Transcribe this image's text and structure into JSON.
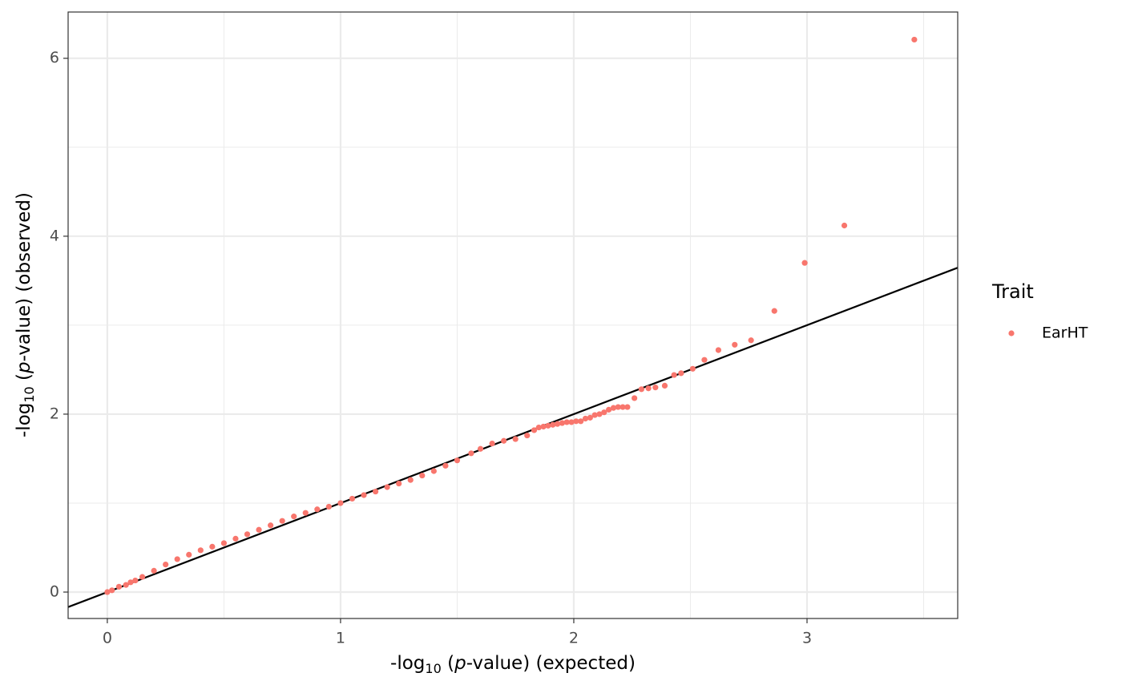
{
  "chart_data": {
    "type": "scatter",
    "xlabel": [
      "-log",
      "10",
      " (",
      "p",
      "-value) (expected)"
    ],
    "ylabel": [
      "-log",
      "10",
      " (",
      "p",
      "-value) (observed)"
    ],
    "legend_title": "Trait",
    "legend_position": "right",
    "grid": true,
    "xlim": [
      -0.168,
      3.646
    ],
    "ylim": [
      -0.297,
      6.52
    ],
    "xticks": [
      0,
      1,
      2,
      3
    ],
    "yticks": [
      0,
      2,
      4,
      6
    ],
    "reference_line": {
      "intercept": 0,
      "slope": 1,
      "color": "#000000"
    },
    "series": [
      {
        "name": "EarHT",
        "color": "#F8766D",
        "x": [
          0.0,
          0.02,
          0.05,
          0.08,
          0.1,
          0.12,
          0.15,
          0.2,
          0.25,
          0.3,
          0.35,
          0.4,
          0.45,
          0.5,
          0.55,
          0.6,
          0.65,
          0.7,
          0.75,
          0.8,
          0.85,
          0.9,
          0.95,
          1.0,
          1.05,
          1.1,
          1.15,
          1.2,
          1.25,
          1.3,
          1.35,
          1.4,
          1.45,
          1.5,
          1.56,
          1.6,
          1.65,
          1.7,
          1.75,
          1.8,
          1.83,
          1.85,
          1.87,
          1.89,
          1.91,
          1.93,
          1.95,
          1.97,
          1.99,
          2.01,
          2.03,
          2.05,
          2.07,
          2.09,
          2.11,
          2.13,
          2.15,
          2.17,
          2.19,
          2.21,
          2.23,
          2.26,
          2.29,
          2.32,
          2.35,
          2.39,
          2.43,
          2.46,
          2.51,
          2.56,
          2.62,
          2.69,
          2.76,
          2.86,
          2.99,
          3.16,
          3.46
        ],
        "values": [
          0.0,
          0.02,
          0.06,
          0.08,
          0.11,
          0.13,
          0.17,
          0.24,
          0.31,
          0.37,
          0.42,
          0.47,
          0.51,
          0.55,
          0.6,
          0.65,
          0.7,
          0.75,
          0.8,
          0.85,
          0.89,
          0.93,
          0.96,
          1.0,
          1.05,
          1.09,
          1.13,
          1.18,
          1.22,
          1.26,
          1.31,
          1.36,
          1.42,
          1.48,
          1.56,
          1.61,
          1.67,
          1.7,
          1.72,
          1.76,
          1.82,
          1.85,
          1.86,
          1.87,
          1.88,
          1.89,
          1.9,
          1.91,
          1.91,
          1.92,
          1.92,
          1.95,
          1.96,
          1.99,
          2.0,
          2.02,
          2.05,
          2.07,
          2.08,
          2.08,
          2.08,
          2.18,
          2.28,
          2.29,
          2.3,
          2.32,
          2.44,
          2.46,
          2.51,
          2.61,
          2.72,
          2.78,
          2.83,
          3.16,
          3.7,
          4.12,
          6.21
        ]
      }
    ]
  }
}
